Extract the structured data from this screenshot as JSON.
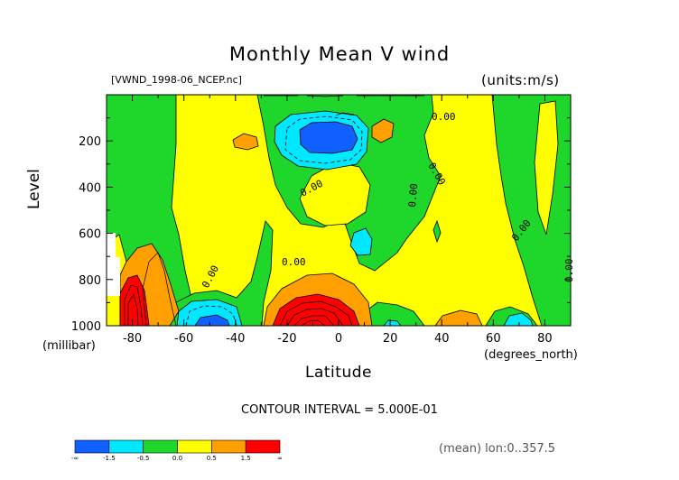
{
  "figure": {
    "title": "Monthly Mean V wind",
    "file_label": "[VWND_1998-06_NCEP.nc]",
    "units_label": "(units:m/s)",
    "contour_interval": "CONTOUR INTERVAL = 5.000E-01",
    "mean_note": "(mean) lon:0..357.5"
  },
  "chart_data": {
    "type": "heatmap",
    "title": "Monthly Mean V wind",
    "xlabel": "Latitude",
    "xlabel_unit": "(degrees_north)",
    "ylabel": "Level",
    "ylabel_unit": "(millibar)",
    "xlim": [
      -90,
      90
    ],
    "ylim": [
      1000,
      0
    ],
    "x_ticks": [
      -80,
      -60,
      -40,
      -20,
      0,
      20,
      40,
      60,
      80
    ],
    "y_ticks": [
      200,
      400,
      600,
      800,
      1000
    ],
    "contour_interval": 0.5,
    "zero_contour_labels": [
      {
        "text": "0.00",
        "lat": 40,
        "level": 90
      },
      {
        "text": "0.00",
        "lat": 34,
        "level": 330
      },
      {
        "text": "0.00",
        "lat": -8,
        "level": 415
      },
      {
        "text": "0.00",
        "lat": 28,
        "level": 445
      },
      {
        "text": "0.00",
        "lat": -48,
        "level": 760
      },
      {
        "text": "0.00",
        "lat": -16,
        "level": 700
      },
      {
        "text": "0.00",
        "lat": 67,
        "level": 560
      },
      {
        "text": "0.00",
        "lat": 88,
        "level": 700
      }
    ],
    "colorbar": {
      "boundaries": [
        "-∞",
        "-1.5",
        "-0.5",
        "0.0",
        "0.5",
        "1.5",
        "∞"
      ],
      "colors": [
        "#1060ff",
        "#00e8ff",
        "#1ed72a",
        "#ffff00",
        "#ff9f00",
        "#ff0000"
      ]
    },
    "regions": [
      {
        "name": "strong-southerly-sh-pole",
        "value": "> 1.5",
        "lat": [
          -88,
          -76
        ],
        "level": [
          780,
          1000
        ]
      },
      {
        "name": "strong-southerly-sh-subtropics",
        "value": "> 1.5",
        "lat": [
          -23,
          0
        ],
        "level": [
          880,
          1000
        ]
      },
      {
        "name": "upper-northerly-core",
        "value": "< -1.5",
        "lat": [
          -20,
          -3
        ],
        "level": [
          105,
          220
        ]
      },
      {
        "name": "northerly-sh-low-level",
        "value": "-1.5 to -0.5",
        "lat": [
          -61,
          -40
        ],
        "level": [
          880,
          1000
        ]
      }
    ],
    "grid": false,
    "legend": "bottom-left"
  }
}
